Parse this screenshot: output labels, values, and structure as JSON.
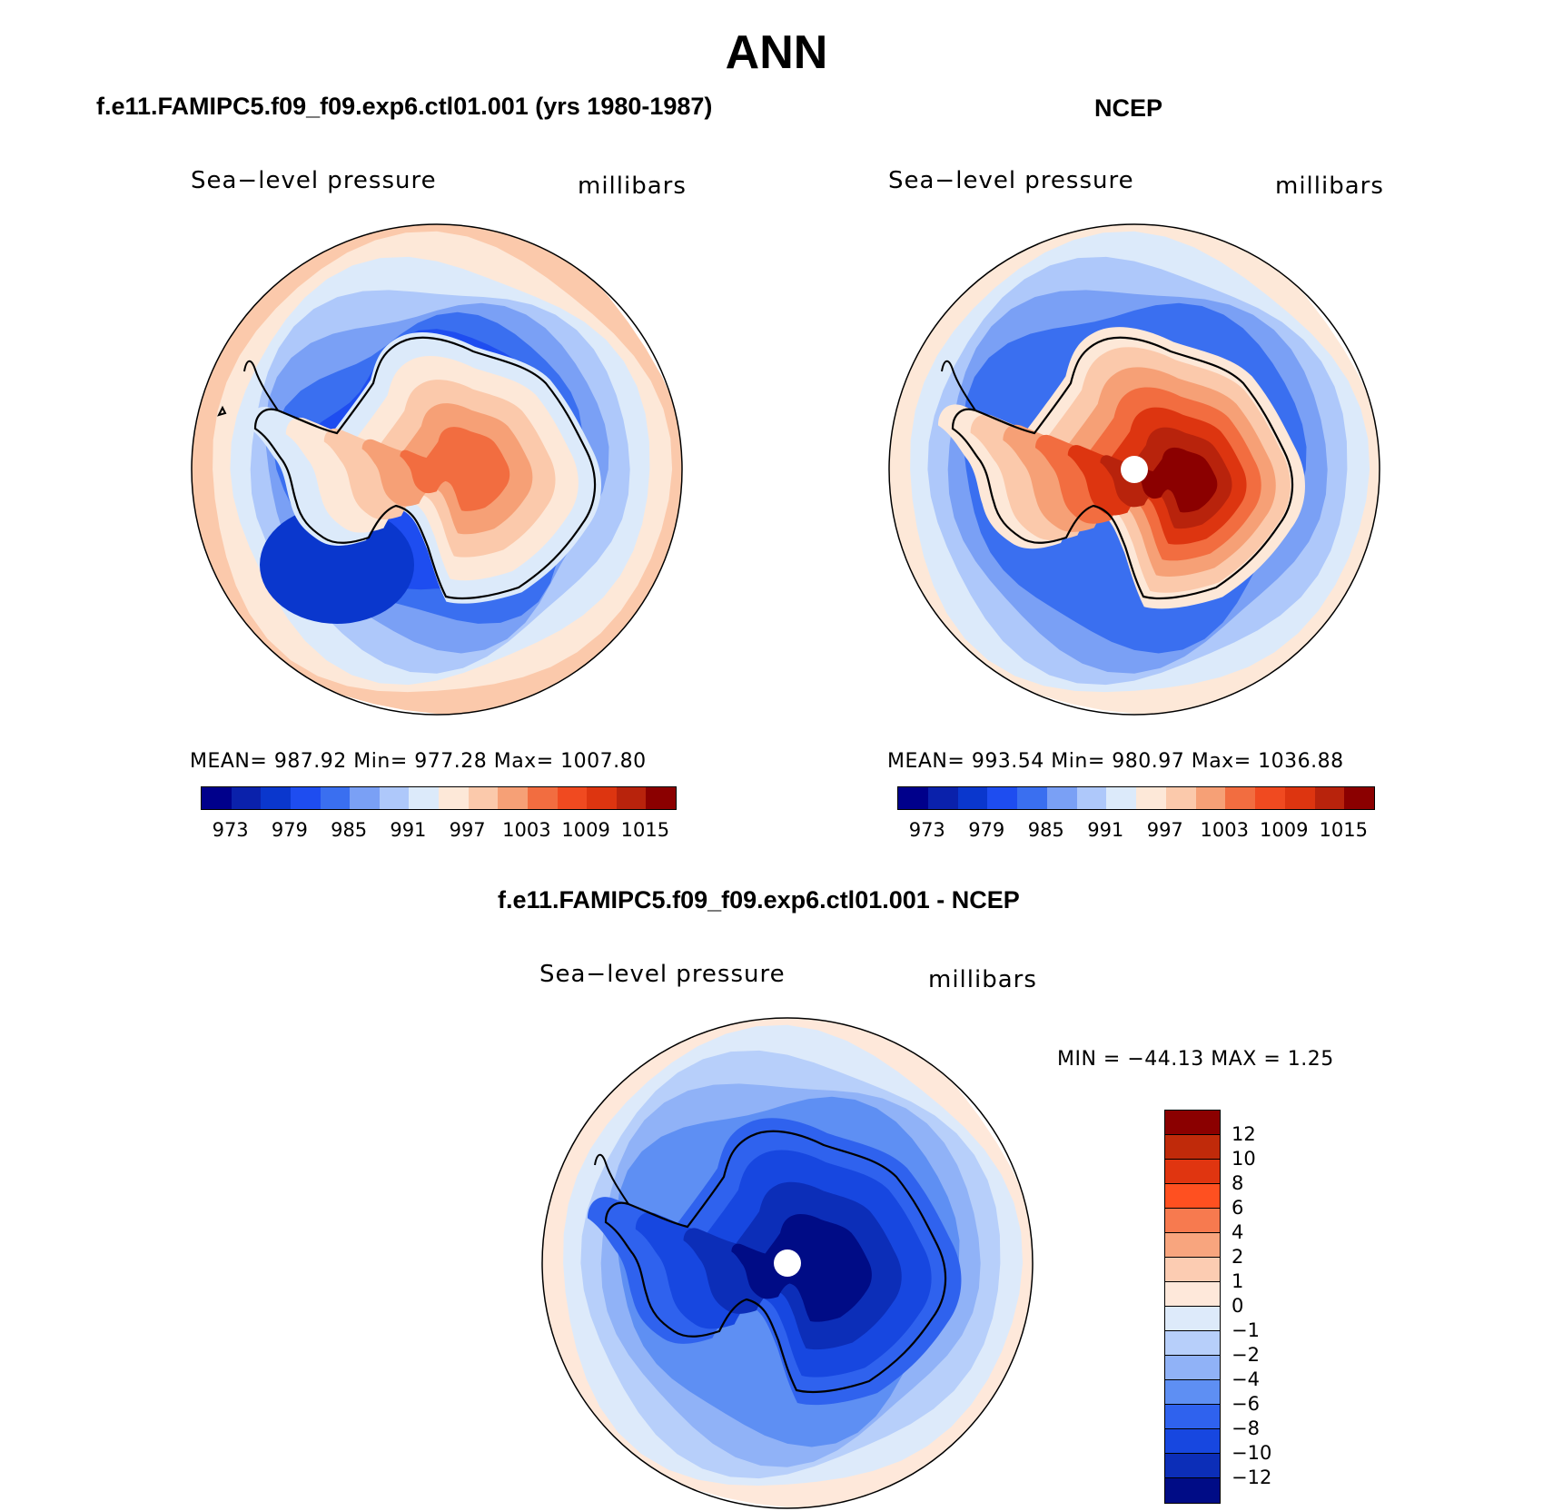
{
  "title": "ANN",
  "panels": {
    "model": {
      "title": "f.e11.FAMIPC5.f09_f09.exp6.ctl01.001 (yrs 1980-1987)",
      "variable": "Sea−level pressure",
      "units": "millibars",
      "stats": "MEAN=  987.92   Min=  977.28   Max=  1007.80"
    },
    "obs": {
      "title": "NCEP",
      "variable": "Sea−level pressure",
      "units": "millibars",
      "stats": "MEAN=  993.54   Min=  980.97   Max=  1036.88"
    },
    "diff": {
      "title": "f.e11.FAMIPC5.f09_f09.exp6.ctl01.001 - NCEP",
      "variable": "Sea−level pressure",
      "units": "millibars",
      "stats": "MIN = −44.13  MAX =    1.25"
    }
  },
  "colorbar_abs": {
    "colors": [
      "#00008b",
      "#0a21ab",
      "#0a37cd",
      "#1e4df0",
      "#3a6ff0",
      "#7aa0f5",
      "#aec8fa",
      "#dceafa",
      "#fde8d8",
      "#fbc9ab",
      "#f6a076",
      "#f26d40",
      "#f04a20",
      "#dd3510",
      "#b8230c",
      "#8b0000"
    ],
    "tick_labels": [
      "973",
      "979",
      "985",
      "991",
      "997",
      "1003",
      "1009",
      "1015"
    ]
  },
  "colorbar_diff": {
    "colors": [
      "#8b0000",
      "#c02a0a",
      "#e03510",
      "#ff5020",
      "#f77a4f",
      "#f8a57e",
      "#fcccb2",
      "#fee8da",
      "#ddeafa",
      "#b7cffa",
      "#90b2f7",
      "#5e8ff3",
      "#2f62ee",
      "#1747e0",
      "#0c2eb8",
      "#000c86"
    ],
    "tick_labels": [
      "12",
      "10",
      "8",
      "6",
      "4",
      "2",
      "1",
      "0",
      "−1",
      "−2",
      "−4",
      "−6",
      "−8",
      "−10",
      "−12"
    ]
  },
  "map_fields": {
    "model": {
      "rings": [
        "#fbc9ab",
        "#fde8d8",
        "#dceafa",
        "#aec8fa",
        "#7aa0f5",
        "#3a6ff0",
        "#1e4df0"
      ],
      "deep_low": "#0a37cd",
      "interior": [
        "#dceafa",
        "#fde8d8",
        "#fbc9ab",
        "#f6a076",
        "#f26d40"
      ]
    },
    "obs": {
      "rings": [
        "#fde8d8",
        "#dceafa",
        "#aec8fa",
        "#7aa0f5",
        "#3a6ff0"
      ],
      "interior": [
        "#fde8d8",
        "#fbc9ab",
        "#f6a076",
        "#f26d40",
        "#dd3510",
        "#b8230c",
        "#8b0000"
      ]
    },
    "diff": {
      "rings": [
        "#fee8da",
        "#ddeafa",
        "#b7cffa",
        "#90b2f7",
        "#5e8ff3"
      ],
      "interior": [
        "#2f62ee",
        "#1747e0",
        "#0c2eb8",
        "#000c86"
      ]
    }
  }
}
